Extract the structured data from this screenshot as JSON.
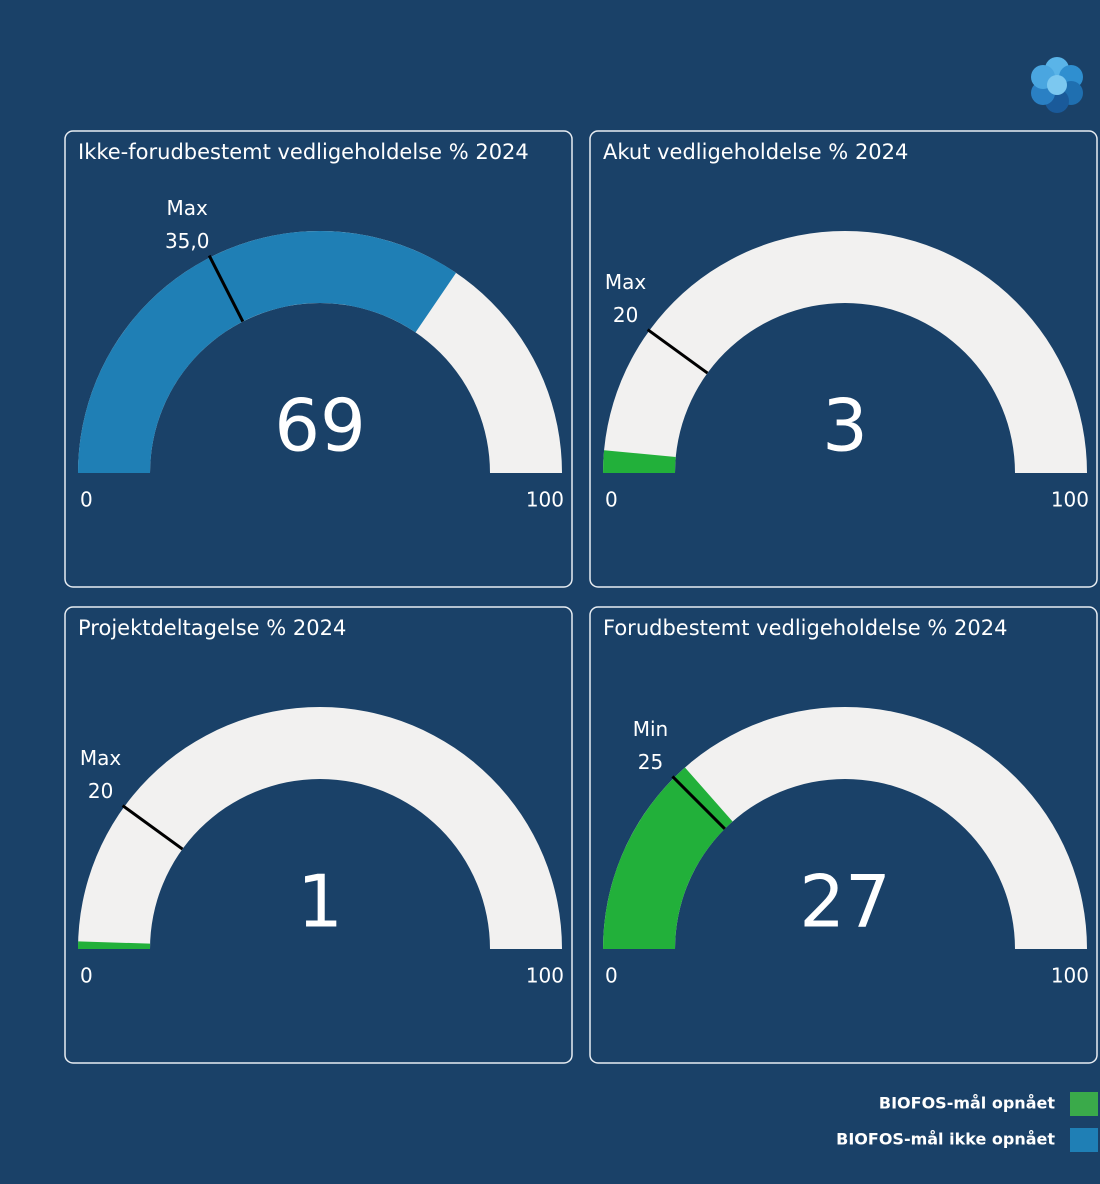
{
  "chart_data": [
    {
      "type": "gauge",
      "title": "Ikke-forudbestemt vedligeholdelse % 2024",
      "value": 69,
      "color": "#1f7fb5",
      "ylim": [
        0,
        100
      ],
      "yticks": [
        0,
        100
      ],
      "target": {
        "name": "Max",
        "value": 35,
        "value_label": "35,0"
      }
    },
    {
      "type": "gauge",
      "title": "Akut vedligeholdelse % 2024",
      "value": 3,
      "color": "#22b03a",
      "ylim": [
        0,
        100
      ],
      "yticks": [
        0,
        100
      ],
      "target": {
        "name": "Max",
        "value": 20
      }
    },
    {
      "type": "gauge",
      "title": "Projektdeltagelse % 2024",
      "value": 1,
      "color": "#22b03a",
      "ylim": [
        0,
        100
      ],
      "yticks": [
        0,
        100
      ],
      "target": {
        "name": "Max",
        "value": 20
      }
    },
    {
      "type": "gauge",
      "title": "Forudbestemt vedligeholdelse % 2024",
      "value": 27,
      "color": "#22b03a",
      "ylim": [
        0,
        100
      ],
      "yticks": [
        0,
        100
      ],
      "target": {
        "name": "Min",
        "value": 25
      }
    }
  ],
  "legend": [
    {
      "name": "BIOFOS-mål opnået",
      "color": "#3aaa4a"
    },
    {
      "name": "BIOFOS-mål ikke opnået",
      "color": "#1f7fb5"
    }
  ]
}
